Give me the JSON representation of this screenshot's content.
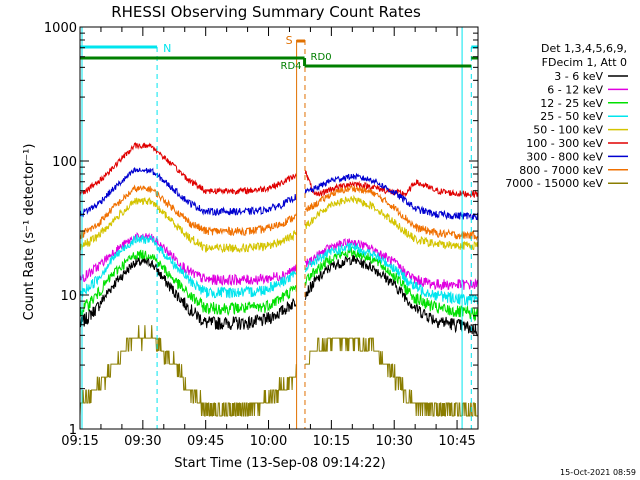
{
  "colors": {
    "background": "#ffffff",
    "axis": "#000000",
    "night": "#00e5ee",
    "saa": "#e07000",
    "rate_bar": "#007f00"
  },
  "chart_data": {
    "type": "line",
    "title": "RHESSI Observing Summary Count Rates",
    "xlabel": "Start Time (13-Sep-08 09:14:22)",
    "ylabel": "Count Rate (s⁻¹ detector⁻¹)",
    "x_unit": "minutes after 09:15 UT",
    "xlim": [
      0,
      95
    ],
    "ylim": [
      1,
      1000
    ],
    "yscale": "log",
    "x_ticks": [
      "09:15",
      "09:30",
      "09:45",
      "10:00",
      "10:15",
      "10:30",
      "10:45"
    ],
    "x_tick_values": [
      0,
      15,
      30,
      45,
      60,
      75,
      90
    ],
    "y_ticks": [
      "1",
      "10",
      "100",
      "1000"
    ],
    "y_tick_values": [
      1,
      10,
      100,
      1000
    ],
    "timestamp": "15-Oct-2021 08:59",
    "legend": {
      "position": "right",
      "header": [
        "Det 1,3,4,5,6,9,",
        "FDecim 1, Att 0"
      ]
    },
    "markers": {
      "night_start": 18.4,
      "night_end": 93.4,
      "saa_start": 51.7,
      "saa_end": 53.7,
      "rate_change": 53.6
    },
    "annotations": {
      "night": "N",
      "saa": "S",
      "rd_before": "RD4",
      "rd_after": "RD0"
    },
    "series": [
      {
        "name": "3 - 6 keV",
        "color": "#000000",
        "points": [
          [
            0,
            6
          ],
          [
            4,
            8
          ],
          [
            8,
            12
          ],
          [
            13,
            17.5
          ],
          [
            17,
            17.5
          ],
          [
            21,
            12
          ],
          [
            26,
            8
          ],
          [
            30,
            6.2
          ],
          [
            40,
            6.2
          ],
          [
            44,
            6.5
          ],
          [
            48,
            7.5
          ],
          [
            51,
            8.8
          ],
          [
            53.5,
            10
          ],
          [
            56,
            12.5
          ],
          [
            60,
            16.5
          ],
          [
            65,
            18.5
          ],
          [
            70,
            16
          ],
          [
            75,
            12
          ],
          [
            78,
            9.5
          ],
          [
            80,
            8
          ],
          [
            85,
            6.5
          ],
          [
            90,
            6
          ],
          [
            95,
            5.5
          ]
        ]
      },
      {
        "name": "6 - 12 keV",
        "color": "#e000e0",
        "points": [
          [
            0,
            13
          ],
          [
            4,
            16
          ],
          [
            8,
            21
          ],
          [
            13,
            27
          ],
          [
            17,
            27
          ],
          [
            21,
            21
          ],
          [
            26,
            15
          ],
          [
            30,
            13
          ],
          [
            40,
            13
          ],
          [
            44,
            13.2
          ],
          [
            48,
            14
          ],
          [
            51,
            15.5
          ],
          [
            53.5,
            16.5
          ],
          [
            56,
            19
          ],
          [
            60,
            23
          ],
          [
            65,
            25
          ],
          [
            70,
            22
          ],
          [
            75,
            17.5
          ],
          [
            78,
            14.5
          ],
          [
            80,
            13
          ],
          [
            85,
            12
          ],
          [
            90,
            12
          ],
          [
            95,
            12
          ]
        ]
      },
      {
        "name": "12 - 25 keV",
        "color": "#00e000",
        "points": [
          [
            0,
            7.5
          ],
          [
            4,
            10
          ],
          [
            8,
            14.5
          ],
          [
            13,
            20
          ],
          [
            17,
            20
          ],
          [
            21,
            14.5
          ],
          [
            26,
            10
          ],
          [
            30,
            8
          ],
          [
            40,
            8
          ],
          [
            44,
            8.2
          ],
          [
            48,
            9.5
          ],
          [
            51,
            11
          ],
          [
            53.5,
            12.5
          ],
          [
            56,
            15
          ],
          [
            60,
            19
          ],
          [
            65,
            21
          ],
          [
            70,
            18.5
          ],
          [
            75,
            14
          ],
          [
            78,
            11
          ],
          [
            80,
            9.5
          ],
          [
            85,
            8
          ],
          [
            90,
            7.5
          ],
          [
            95,
            7.2
          ]
        ]
      },
      {
        "name": "25 - 50 keV",
        "color": "#00e5ee",
        "points": [
          [
            0,
            10
          ],
          [
            4,
            13
          ],
          [
            8,
            19
          ],
          [
            13,
            26
          ],
          [
            17,
            26
          ],
          [
            21,
            19
          ],
          [
            26,
            13
          ],
          [
            30,
            10.5
          ],
          [
            40,
            10.5
          ],
          [
            44,
            11
          ],
          [
            48,
            12.5
          ],
          [
            51,
            14
          ],
          [
            53.5,
            15.5
          ],
          [
            56,
            18
          ],
          [
            60,
            21
          ],
          [
            65,
            23
          ],
          [
            70,
            20
          ],
          [
            75,
            16
          ],
          [
            78,
            13
          ],
          [
            80,
            11.5
          ],
          [
            85,
            10
          ],
          [
            90,
            9.5
          ],
          [
            95,
            9
          ]
        ]
      },
      {
        "name": "50 - 100 keV",
        "color": "#d4c400",
        "points": [
          [
            0,
            23
          ],
          [
            4,
            27
          ],
          [
            8,
            36
          ],
          [
            13,
            50
          ],
          [
            17,
            50
          ],
          [
            21,
            38
          ],
          [
            26,
            27
          ],
          [
            30,
            22.5
          ],
          [
            40,
            22.5
          ],
          [
            44,
            23
          ],
          [
            48,
            25
          ],
          [
            51,
            28
          ],
          [
            53.5,
            32
          ],
          [
            56,
            38
          ],
          [
            60,
            48
          ],
          [
            65,
            52
          ],
          [
            70,
            46
          ],
          [
            75,
            35
          ],
          [
            78,
            29
          ],
          [
            80,
            26
          ],
          [
            85,
            24
          ],
          [
            90,
            23.5
          ],
          [
            95,
            23.5
          ]
        ]
      },
      {
        "name": "100 - 300 keV",
        "color": "#e00000",
        "points": [
          [
            0,
            57
          ],
          [
            4,
            68
          ],
          [
            8,
            90
          ],
          [
            13,
            130
          ],
          [
            17,
            130
          ],
          [
            21,
            100
          ],
          [
            26,
            72
          ],
          [
            30,
            60
          ],
          [
            40,
            60
          ],
          [
            44,
            62
          ],
          [
            48,
            68
          ],
          [
            51,
            77
          ],
          [
            53.5,
            88
          ],
          [
            56,
            55
          ],
          [
            60,
            62
          ],
          [
            65,
            68
          ],
          [
            70,
            64
          ],
          [
            75,
            58
          ],
          [
            78,
            57
          ],
          [
            80,
            70
          ],
          [
            85,
            60
          ],
          [
            90,
            57
          ],
          [
            95,
            57
          ]
        ]
      },
      {
        "name": "300 - 800 keV",
        "color": "#0000d0",
        "points": [
          [
            0,
            40
          ],
          [
            4,
            47
          ],
          [
            8,
            62
          ],
          [
            13,
            85
          ],
          [
            17,
            85
          ],
          [
            21,
            67
          ],
          [
            26,
            49
          ],
          [
            30,
            42
          ],
          [
            40,
            42
          ],
          [
            44,
            43
          ],
          [
            48,
            47
          ],
          [
            51,
            53
          ],
          [
            53.5,
            58
          ],
          [
            56,
            62
          ],
          [
            60,
            72
          ],
          [
            65,
            77
          ],
          [
            70,
            72
          ],
          [
            75,
            58
          ],
          [
            78,
            50
          ],
          [
            80,
            44
          ],
          [
            85,
            40
          ],
          [
            90,
            39
          ],
          [
            95,
            39
          ]
        ]
      },
      {
        "name": "800 - 7000 keV",
        "color": "#f07000",
        "points": [
          [
            0,
            28
          ],
          [
            4,
            33
          ],
          [
            8,
            45
          ],
          [
            13,
            62
          ],
          [
            17,
            62
          ],
          [
            21,
            48
          ],
          [
            26,
            35
          ],
          [
            30,
            30
          ],
          [
            40,
            30
          ],
          [
            44,
            31
          ],
          [
            48,
            34
          ],
          [
            51,
            38
          ],
          [
            53.5,
            42
          ],
          [
            56,
            47
          ],
          [
            60,
            57
          ],
          [
            65,
            63
          ],
          [
            70,
            58
          ],
          [
            75,
            45
          ],
          [
            78,
            37
          ],
          [
            80,
            32
          ],
          [
            85,
            29
          ],
          [
            90,
            28
          ],
          [
            95,
            28
          ]
        ]
      },
      {
        "name": "7000 - 15000 keV",
        "color": "#8a7d00",
        "points": [
          [
            0,
            1.5
          ],
          [
            4,
            2
          ],
          [
            8,
            3
          ],
          [
            13,
            4.8
          ],
          [
            17,
            4.8
          ],
          [
            21,
            3.5
          ],
          [
            26,
            2
          ],
          [
            30,
            1.4
          ],
          [
            40,
            1.4
          ],
          [
            44,
            1.6
          ],
          [
            48,
            2
          ],
          [
            51,
            2.5
          ],
          [
            53.5,
            3
          ],
          [
            56,
            3.8
          ],
          [
            60,
            4.6
          ],
          [
            65,
            4.8
          ],
          [
            70,
            4
          ],
          [
            75,
            2.5
          ],
          [
            78,
            1.8
          ],
          [
            80,
            1.5
          ],
          [
            85,
            1.4
          ],
          [
            90,
            1.4
          ],
          [
            95,
            1.4
          ]
        ]
      }
    ]
  }
}
